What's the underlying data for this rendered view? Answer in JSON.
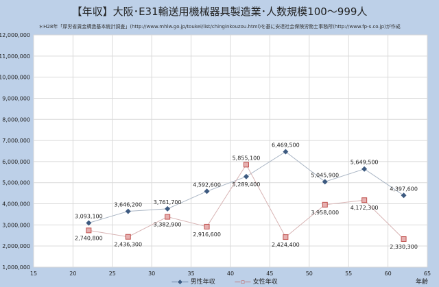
{
  "chart_data": {
    "type": "line",
    "title": "【年収】大阪･E31輸送用機械器具製造業･人数規模100～999人",
    "subtitle": "＊H28年「厚労省賃金構造基本統計調査」(http://www.mhlw.go.jp/toukei/list/chinginkouzou.html)を基に安達社会保険労務士事務所(http://www.fp-s.co.jp)が作成",
    "xlabel": "年齢",
    "ylabel": "",
    "xlim": [
      15,
      65
    ],
    "ylim": [
      1000000,
      12000000
    ],
    "xticks": [
      "15",
      "20",
      "25",
      "30",
      "35",
      "40",
      "45",
      "50",
      "55",
      "60",
      "65"
    ],
    "yticks": [
      "1,000,000",
      "2,000,000",
      "3,000,000",
      "4,000,000",
      "5,000,000",
      "6,000,000",
      "7,000,000",
      "8,000,000",
      "9,000,000",
      "10,000,000",
      "11,000,000",
      "12,000,000"
    ],
    "grid": true,
    "legend_position": "bottom",
    "x": [
      22,
      27,
      32,
      37,
      42,
      47,
      52,
      57,
      62
    ],
    "series": [
      {
        "name": "男性年収",
        "color": "#3d5a80",
        "marker": "diamond",
        "values": [
          3093100,
          3646200,
          3761700,
          4592600,
          5289400,
          6469500,
          5045900,
          5649500,
          4397600
        ],
        "labels": [
          "3,093,100",
          "3,646,200",
          "3,761,700",
          "4,592,600",
          "5,289,400",
          "6,469,500",
          "5,045,900",
          "5,649,500",
          "4,397,600"
        ]
      },
      {
        "name": "女性年収",
        "color": "#c0504d",
        "marker": "square",
        "values": [
          2740800,
          2436300,
          3382900,
          2916600,
          5855100,
          2424400,
          3958000,
          4172300,
          2330300
        ],
        "labels": [
          "2,740,800",
          "2,436,300",
          "3,382,900",
          "2,916,600",
          "5,855,100",
          "2,424,400",
          "3,958,000",
          "4,172,300",
          "2,330,300"
        ]
      }
    ]
  }
}
